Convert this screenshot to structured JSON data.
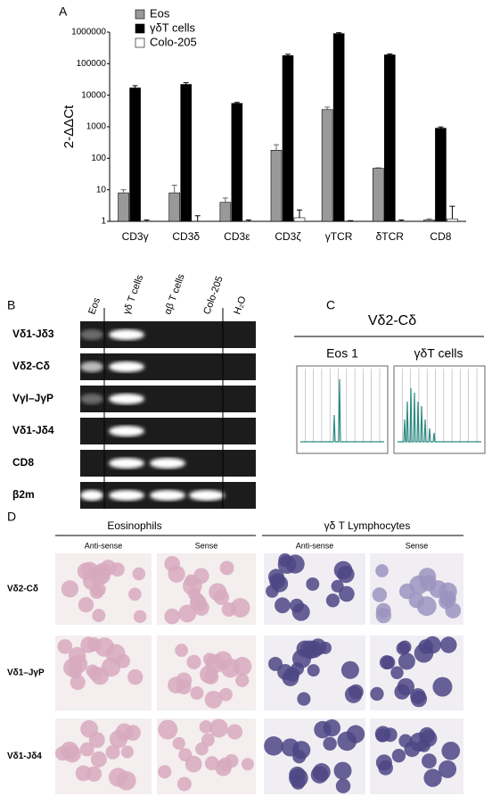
{
  "chart_data": {
    "type": "bar",
    "ylabel": "2-ΔΔCt",
    "log_scale": true,
    "legend": "top-left",
    "categories": [
      "CD3γ",
      "CD3δ",
      "CD3ε",
      "CD3ζ",
      "γTCR",
      "δTCR",
      "CD8"
    ],
    "series": [
      {
        "name": "Eos",
        "color": "#999999",
        "values": [
          8,
          8,
          4,
          180,
          3500,
          48,
          1.1
        ],
        "errors": [
          2,
          6,
          1.5,
          90,
          700,
          2,
          0.1
        ]
      },
      {
        "name": "γδT cells",
        "color": "#000000",
        "values": [
          17000,
          22000,
          5500,
          180000,
          900000,
          190000,
          900
        ],
        "errors": [
          3000,
          3000,
          400,
          20000,
          60000,
          15000,
          80
        ]
      },
      {
        "name": "Colo-205",
        "color": "#ffffff",
        "values": [
          1,
          1,
          1,
          1.3,
          1,
          1,
          1.2
        ],
        "errors": [
          0.1,
          0.5,
          0.1,
          1,
          0.05,
          0.1,
          1.8
        ]
      }
    ],
    "ylim": [
      1,
      1000000
    ],
    "yticks": [
      1,
      10,
      100,
      1000,
      10000,
      100000,
      1000000
    ]
  },
  "panel_labels": [
    "A",
    "B",
    "C",
    "D"
  ],
  "gel": {
    "columns": [
      "Eos",
      "γδ T cells",
      "αβ T cells",
      "Colo-205",
      "H₂O"
    ],
    "rows": [
      "Vδ1-Jδ3",
      "Vδ2-Cδ",
      "VγI–JγP",
      "Vδ1-Jδ4",
      "CD8",
      "β2m"
    ]
  },
  "spectratype": {
    "title": "Vδ2-Cδ",
    "plots": [
      "Eos 1",
      "γδT cells"
    ]
  },
  "in_situ": {
    "groups": [
      {
        "title": "Eosinophils",
        "probes": [
          "Anti-sense",
          "Sense"
        ]
      },
      {
        "title": "γδ T Lymphocytes",
        "probes": [
          "Anti-sense",
          "Sense"
        ]
      }
    ],
    "rows": [
      "Vδ2-Cδ",
      "Vδ1–JγP",
      "Vδ1-Jδ4"
    ]
  }
}
